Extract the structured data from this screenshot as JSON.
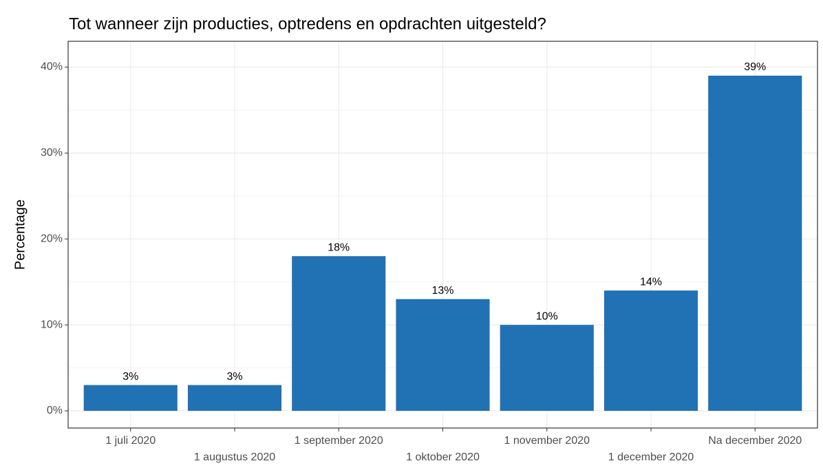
{
  "chart_data": {
    "type": "bar",
    "title": "Tot wanneer zijn producties, optredens en opdrachten uitgesteld?",
    "y_label": "Percentage",
    "categories": [
      "1 juli 2020",
      "1 augustus 2020",
      "1 september 2020",
      "1 oktober 2020",
      "1 november 2020",
      "1 december 2020",
      "Na december 2020"
    ],
    "values": [
      3,
      3,
      18,
      13,
      10,
      14,
      39
    ],
    "value_labels": [
      "3%",
      "3%",
      "18%",
      "13%",
      "10%",
      "14%",
      "39%"
    ],
    "color": "#2171b5",
    "ylim": [
      -2,
      43
    ],
    "yticks": [
      {
        "value": 0,
        "label": "0%"
      },
      {
        "value": 10,
        "label": "10%"
      },
      {
        "value": 20,
        "label": "20%"
      },
      {
        "value": 30,
        "label": "30%"
      },
      {
        "value": 40,
        "label": "40%"
      }
    ],
    "yminor": [
      5,
      15,
      25,
      35
    ],
    "grid": true
  }
}
